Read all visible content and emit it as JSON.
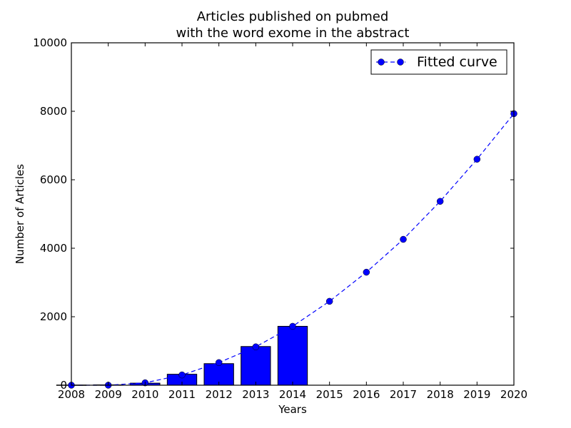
{
  "chart_data": {
    "type": "bar",
    "title_line1": "Articles published on pubmed",
    "title_line2": "with the word exome in the abstract",
    "xlabel": "Years",
    "ylabel": "Number of Articles",
    "xlim": [
      2008,
      2020
    ],
    "ylim": [
      0,
      10000
    ],
    "x_ticks": [
      "2008",
      "2009",
      "2010",
      "2011",
      "2012",
      "2013",
      "2014",
      "2015",
      "2016",
      "2017",
      "2018",
      "2019",
      "2020"
    ],
    "y_ticks": [
      "0",
      "2000",
      "4000",
      "6000",
      "8000",
      "10000"
    ],
    "bars": {
      "x": [
        2008,
        2009,
        2010,
        2011,
        2012,
        2013,
        2014
      ],
      "values": [
        5,
        10,
        60,
        320,
        630,
        1130,
        1720
      ],
      "color": "#0000ff"
    },
    "series": [
      {
        "name": "Fitted curve",
        "style": "dashed line with circle markers",
        "color": "#0000ff",
        "x": [
          2008,
          2009,
          2010,
          2011,
          2012,
          2013,
          2014,
          2015,
          2016,
          2017,
          2018,
          2019,
          2020
        ],
        "values": [
          0,
          0,
          70,
          300,
          660,
          1120,
          1720,
          2450,
          3300,
          4260,
          5370,
          6600,
          7930
        ]
      }
    ],
    "legend_position": "top-right",
    "grid": false
  }
}
